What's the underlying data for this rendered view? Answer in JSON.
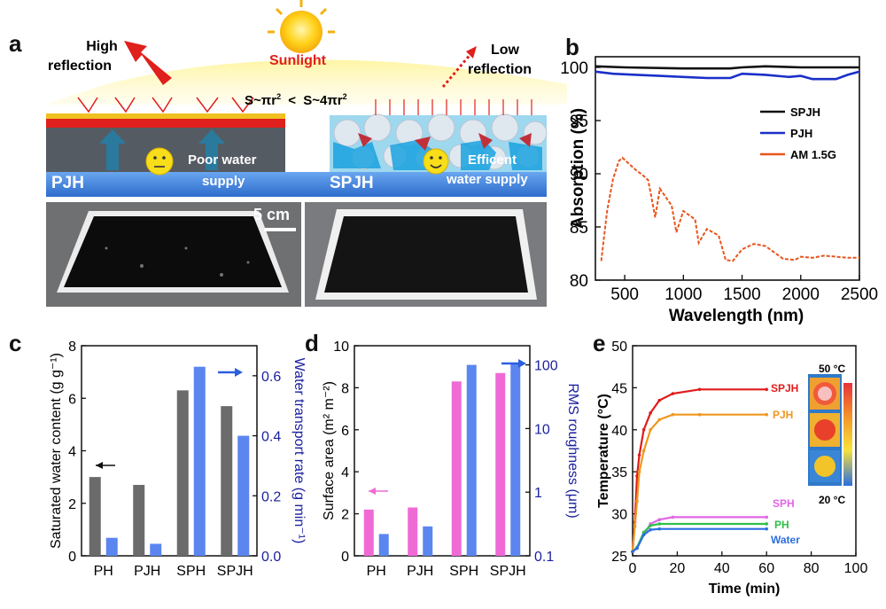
{
  "panels": {
    "a": "a",
    "b": "b",
    "c": "c",
    "d": "d",
    "e": "e"
  },
  "colors": {
    "sun": "#ffd21a",
    "glow": "#fff08a",
    "red": "#e0201c",
    "orange": "#f07b1e",
    "blue_water": "#3a7fd6",
    "dark_layer": "#555b63",
    "gray_bar": "#6b6b6b",
    "blue_bar": "#5b86f0",
    "pink_bar": "#f06ad6",
    "navy": "#1a1f9e"
  },
  "schematic": {
    "sunlight": "Sunlight",
    "high_reflection": [
      "High",
      "reflection"
    ],
    "low_reflection": [
      "Low",
      "reflection"
    ],
    "area_formula_left": "S~πr",
    "area_formula_right": "S~4πr",
    "superscript": "2",
    "less_than": "<",
    "pjh_label": "PJH",
    "spjh_label": "SPJH",
    "poor_water": [
      "Poor water",
      "supply"
    ],
    "efficient_water": [
      "Efficent",
      "water supply"
    ],
    "scale_bar": "5 cm"
  },
  "chart_data": [
    {
      "panel": "b",
      "type": "line",
      "xlabel": "Wavelength (nm)",
      "ylabel": "Absorption (%)",
      "xlim": [
        250,
        2500
      ],
      "ylim": [
        80,
        101
      ],
      "xticks": [
        500,
        1000,
        1500,
        2000,
        2500
      ],
      "yticks": [
        80,
        85,
        90,
        95,
        100
      ],
      "legend_position": "right",
      "series": [
        {
          "name": "SPJH",
          "color": "#111111",
          "x": [
            250,
            500,
            1000,
            1400,
            1500,
            1700,
            2000,
            2300,
            2500
          ],
          "y": [
            100.1,
            100.0,
            99.9,
            99.9,
            100.0,
            100.1,
            100.0,
            100.0,
            100.0
          ]
        },
        {
          "name": "PJH",
          "color": "#1a2fc8",
          "x": [
            250,
            400,
            600,
            800,
            1000,
            1200,
            1400,
            1500,
            1700,
            1900,
            2000,
            2100,
            2300,
            2400,
            2500
          ],
          "y": [
            99.6,
            99.4,
            99.3,
            99.2,
            99.1,
            99.0,
            99.0,
            99.4,
            99.3,
            99.1,
            99.2,
            98.9,
            98.9,
            99.3,
            99.6
          ]
        },
        {
          "name": "AM 1.5G",
          "color": "#e8541c",
          "x": [
            300,
            350,
            400,
            450,
            480,
            500,
            550,
            600,
            650,
            700,
            760,
            800,
            900,
            940,
            1000,
            1100,
            1130,
            1200,
            1300,
            1360,
            1420,
            1500,
            1600,
            1700,
            1800,
            1850,
            1950,
            2000,
            2100,
            2200,
            2300,
            2400,
            2500
          ],
          "y": [
            81.8,
            86.5,
            89.5,
            91.2,
            91.5,
            91.3,
            90.8,
            90.3,
            89.9,
            89.4,
            85.9,
            88.6,
            87.0,
            84.5,
            86.5,
            85.7,
            83.5,
            84.8,
            84.2,
            81.9,
            81.8,
            82.9,
            83.4,
            83.2,
            82.4,
            82.0,
            81.9,
            82.2,
            82.1,
            82.3,
            82.2,
            82.1,
            82.1
          ]
        }
      ]
    },
    {
      "panel": "c",
      "type": "bar",
      "categories": [
        "PH",
        "PJH",
        "SPH",
        "SPJH"
      ],
      "ylabel": "Saturated water content (g g⁻¹)",
      "ylabel_right": "Water transport rate (g min⁻¹)",
      "ylim": [
        0,
        8
      ],
      "yticks": [
        0,
        2,
        4,
        6,
        8
      ],
      "ylim_right": [
        0,
        0.7
      ],
      "yticks_right": [
        "0.0",
        "0.2",
        "0.4",
        "0.6"
      ],
      "series": [
        {
          "axis": "left",
          "color": "#6b6b6b",
          "values": [
            3.0,
            2.7,
            6.3,
            5.7
          ]
        },
        {
          "axis": "right",
          "color": "#5b86f0",
          "values": [
            0.06,
            0.04,
            0.63,
            0.4
          ]
        }
      ]
    },
    {
      "panel": "d",
      "type": "bar",
      "categories": [
        "PH",
        "PJH",
        "SPH",
        "SPJH"
      ],
      "ylabel": "Surface area (m² m⁻²)",
      "ylabel_right": "RMS roughness (μm)",
      "ylim": [
        0,
        10
      ],
      "yticks": [
        0,
        2,
        4,
        6,
        8,
        10
      ],
      "ylim_right": [
        0.1,
        200
      ],
      "yscale_right": "log",
      "yticks_right": [
        "0.1",
        "1",
        "10",
        "100"
      ],
      "series": [
        {
          "axis": "left",
          "color": "#f06ad6",
          "values": [
            2.2,
            2.3,
            8.3,
            8.7
          ]
        },
        {
          "axis": "right",
          "color": "#5b86f0",
          "values": [
            0.22,
            0.29,
            100,
            105
          ]
        }
      ]
    },
    {
      "panel": "e",
      "type": "line",
      "xlabel": "Time (min)",
      "ylabel": "Temperature (°C)",
      "xlim": [
        0,
        100
      ],
      "ylim": [
        25,
        50
      ],
      "xticks": [
        0,
        20,
        40,
        60,
        80,
        100
      ],
      "yticks": [
        25,
        30,
        35,
        40,
        45,
        50
      ],
      "legend_labels_on_curves": true,
      "inset_labels": {
        "top": "50 °C",
        "bottom": "20 °C"
      },
      "series": [
        {
          "name": "SPJH",
          "color": "#e01c1c",
          "x": [
            0,
            1,
            2,
            3,
            5,
            8,
            12,
            18,
            30,
            60
          ],
          "y": [
            25.5,
            29,
            34.5,
            37,
            40,
            42,
            43.5,
            44.3,
            44.8,
            44.8
          ]
        },
        {
          "name": "PJH",
          "color": "#f0961e",
          "x": [
            0,
            1,
            2,
            3,
            5,
            8,
            12,
            18,
            30,
            60
          ],
          "y": [
            25.5,
            28.5,
            31.5,
            35,
            37.5,
            40,
            41.2,
            41.8,
            41.8,
            41.8
          ]
        },
        {
          "name": "SPH",
          "color": "#e066e6",
          "x": [
            0,
            2,
            5,
            8,
            12,
            18,
            60
          ],
          "y": [
            25.5,
            26,
            27.5,
            28.8,
            29.3,
            29.6,
            29.6
          ]
        },
        {
          "name": "PH",
          "color": "#2fbf4a",
          "x": [
            0,
            2,
            5,
            8,
            12,
            60
          ],
          "y": [
            25.5,
            26,
            27.8,
            28.6,
            28.8,
            28.8
          ]
        },
        {
          "name": "Water",
          "color": "#2b6fe0",
          "x": [
            0,
            2,
            5,
            8,
            12,
            60
          ],
          "y": [
            25.5,
            25.9,
            27.5,
            28.1,
            28.2,
            28.2
          ]
        }
      ]
    }
  ]
}
